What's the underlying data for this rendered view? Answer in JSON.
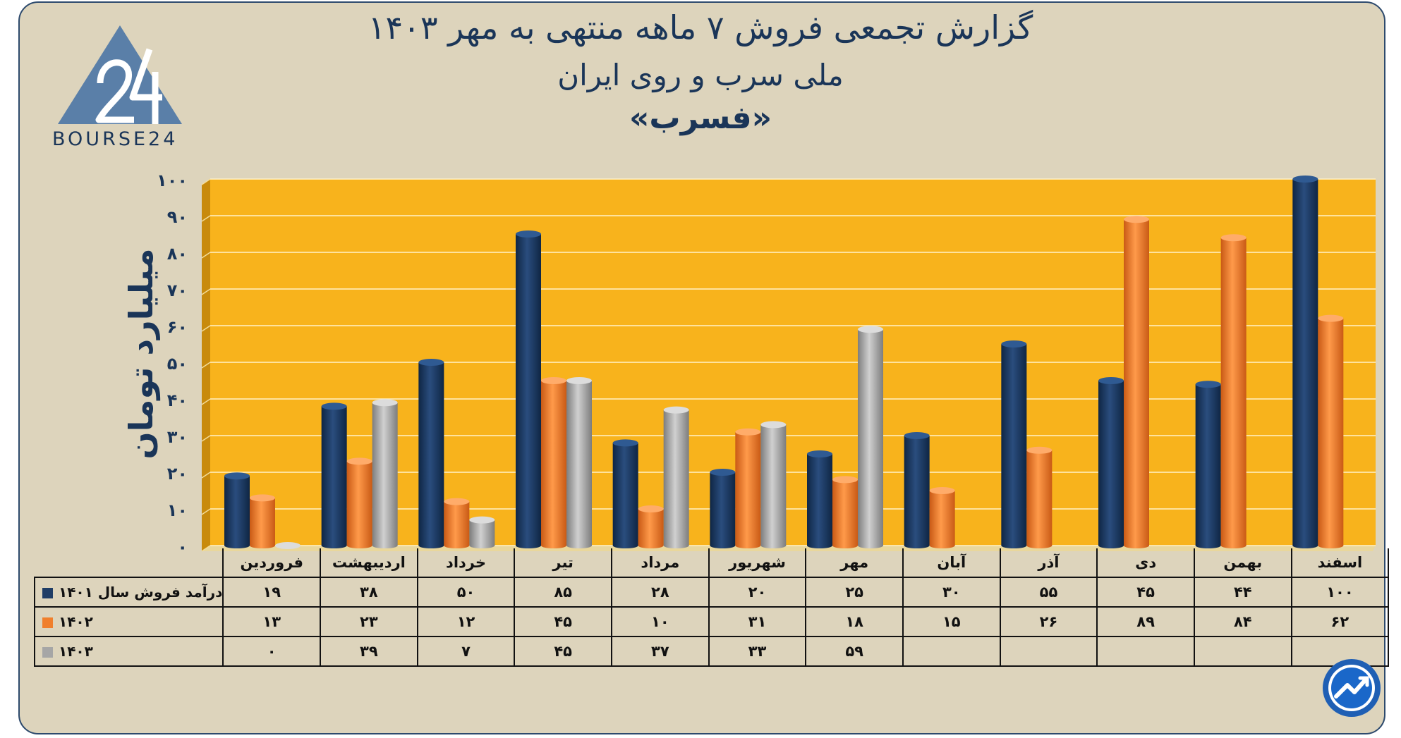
{
  "title": {
    "line1": "گزارش تجمعی فروش ۷ ماهه منتهی به مهر ۱۴۰۳",
    "line2": "ملی سرب و روی ایران",
    "line3": "«فسرب»"
  },
  "logo": {
    "text": "BOURSE24",
    "icon": "bourse24-triangle-logo"
  },
  "corner_badge": {
    "icon": "trend-arrow-badge-icon"
  },
  "colors": {
    "frame": "#ddd4bc",
    "plot_background": "#f8b31c",
    "series_1401": "#1f3d66",
    "series_1402": "#f07f2c",
    "series_1403": "#a6a6a6",
    "text": "#1a3558"
  },
  "chart_data": {
    "type": "bar",
    "categories": [
      "فروردین",
      "اردیبهشت",
      "خرداد",
      "تیر",
      "مرداد",
      "شهریور",
      "مهر",
      "آبان",
      "آذر",
      "دی",
      "بهمن",
      "اسفند"
    ],
    "ylabel": "میلیارد تومان",
    "ylim": [
      0,
      100
    ],
    "yticks": [
      "۰",
      "۱۰",
      "۲۰",
      "۳۰",
      "۴۰",
      "۵۰",
      "۶۰",
      "۷۰",
      "۸۰",
      "۹۰",
      "۱۰۰"
    ],
    "grid": true,
    "series": [
      {
        "name": "درآمد فروش سال ۱۴۰۱",
        "color": "#1f3d66",
        "values": [
          19,
          38,
          50,
          85,
          28,
          20,
          25,
          30,
          55,
          45,
          44,
          100
        ],
        "labels": [
          "۱۹",
          "۳۸",
          "۵۰",
          "۸۵",
          "۲۸",
          "۲۰",
          "۲۵",
          "۳۰",
          "۵۵",
          "۴۵",
          "۴۴",
          "۱۰۰"
        ]
      },
      {
        "name": "۱۴۰۲",
        "color": "#f07f2c",
        "values": [
          13,
          23,
          12,
          45,
          10,
          31,
          18,
          15,
          26,
          89,
          84,
          62
        ],
        "labels": [
          "۱۳",
          "۲۳",
          "۱۲",
          "۴۵",
          "۱۰",
          "۳۱",
          "۱۸",
          "۱۵",
          "۲۶",
          "۸۹",
          "۸۴",
          "۶۲"
        ]
      },
      {
        "name": "۱۴۰۳",
        "color": "#a6a6a6",
        "values": [
          0,
          39,
          7,
          45,
          37,
          33,
          59,
          null,
          null,
          null,
          null,
          null
        ],
        "labels": [
          "۰",
          "۳۹",
          "۷",
          "۴۵",
          "۳۷",
          "۳۳",
          "۵۹",
          "",
          "",
          "",
          "",
          ""
        ]
      }
    ]
  }
}
